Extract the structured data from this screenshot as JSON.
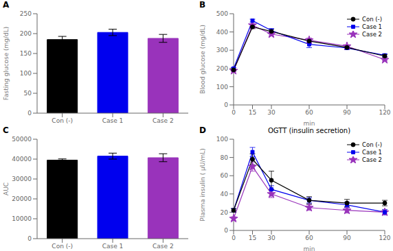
{
  "chart_data": [
    {
      "type": "bar",
      "title": "A",
      "categories": [
        "Con (-)",
        "Case 1",
        "Case 2"
      ],
      "values": [
        185,
        203,
        188
      ],
      "errors": [
        8,
        8,
        10
      ],
      "colors": [
        "#000000",
        "#0000ee",
        "#9933bb"
      ],
      "ylabel": "Fasting glucose (mg/dL)",
      "ylim": [
        0,
        250
      ],
      "yticks": [
        0,
        50,
        100,
        150,
        200,
        250
      ],
      "grid": false
    },
    {
      "type": "line",
      "title": "B",
      "xlabel": "min",
      "ylabel": "Blood glucose (mg/dL)",
      "x": [
        0,
        15,
        30,
        60,
        90,
        120
      ],
      "xlim": [
        0,
        120
      ],
      "xticks": [
        0,
        15,
        30,
        60,
        90,
        120
      ],
      "ylim": [
        0,
        500
      ],
      "yticks": [
        0,
        100,
        200,
        300,
        400,
        500
      ],
      "series": [
        {
          "name": "Con (-)",
          "color": "#000000",
          "marker": "circle",
          "values": [
            192,
            428,
            403,
            350,
            315,
            268
          ],
          "errors": [
            5,
            10,
            12,
            10,
            8,
            8
          ]
        },
        {
          "name": "Case 1",
          "color": "#0000ee",
          "marker": "square",
          "values": [
            200,
            462,
            408,
            332,
            312,
            272
          ],
          "errors": [
            5,
            8,
            10,
            18,
            8,
            8
          ]
        },
        {
          "name": "Case 2",
          "color": "#9933bb",
          "marker": "star",
          "values": [
            188,
            437,
            388,
            355,
            322,
            248
          ],
          "errors": [
            4,
            8,
            10,
            12,
            8,
            6
          ]
        }
      ],
      "legend": "upper right",
      "grid": false
    },
    {
      "type": "bar",
      "title": "C",
      "categories": [
        "Con (-)",
        "Case 1",
        "Case 2"
      ],
      "values": [
        39500,
        41500,
        40700
      ],
      "errors": [
        600,
        1500,
        2000
      ],
      "colors": [
        "#000000",
        "#0000ee",
        "#9933bb"
      ],
      "ylabel": "AUC",
      "ylim": [
        0,
        50000
      ],
      "yticks": [
        0,
        10000,
        20000,
        30000,
        40000,
        50000
      ],
      "grid": false
    },
    {
      "type": "line",
      "title": "D",
      "subtitle": "OGTT (insulin secretion)",
      "xlabel": "min",
      "ylabel": "Plasma insulin ( μU/mL)",
      "x": [
        0,
        15,
        30,
        60,
        90,
        120
      ],
      "xlim": [
        0,
        120
      ],
      "xticks": [
        0,
        15,
        30,
        60,
        90,
        120
      ],
      "ylim": [
        0,
        100
      ],
      "yticks": [
        0,
        20,
        40,
        60,
        80,
        100
      ],
      "series": [
        {
          "name": "Con (-)",
          "color": "#000000",
          "marker": "circle",
          "values": [
            22,
            78,
            55,
            33,
            30,
            30
          ],
          "errors": [
            2,
            6,
            10,
            4,
            4,
            3
          ]
        },
        {
          "name": "Case 1",
          "color": "#0000ee",
          "marker": "square",
          "values": [
            22,
            86,
            45,
            33,
            28,
            20
          ],
          "errors": [
            2,
            5,
            4,
            3,
            3,
            3
          ]
        },
        {
          "name": "Case 2",
          "color": "#9933bb",
          "marker": "star",
          "values": [
            13,
            70,
            40,
            25,
            22,
            20
          ],
          "errors": [
            2,
            5,
            4,
            3,
            3,
            2
          ]
        }
      ],
      "legend": "upper right",
      "grid": false
    }
  ]
}
